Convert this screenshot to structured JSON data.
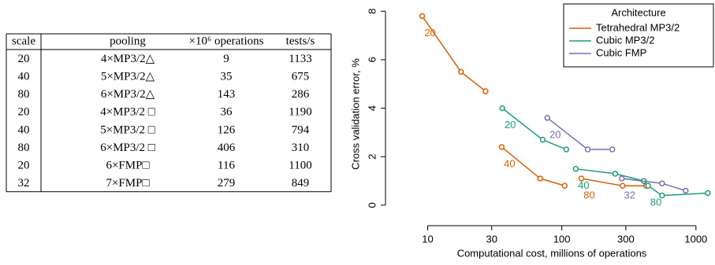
{
  "table": {
    "header": [
      "scale",
      "pooling",
      "×10⁶ operations",
      "tests/s"
    ],
    "rows": [
      [
        20,
        "4×MP3/2△",
        9,
        1133
      ],
      [
        40,
        "5×MP3/2△",
        35,
        675
      ],
      [
        80,
        "6×MP3/2△",
        143,
        286
      ],
      [
        20,
        "4×MP3/2 □",
        36,
        1190
      ],
      [
        40,
        "5×MP3/2 □",
        126,
        794
      ],
      [
        80,
        "6×MP3/2 □",
        406,
        310
      ],
      [
        20,
        "6×FMP□",
        116,
        1100
      ],
      [
        32,
        "7×FMP□",
        279,
        849
      ]
    ]
  },
  "chart_data": {
    "type": "line",
    "x_label": "Computational cost, millions of operations",
    "y_label": "Cross validation error, %",
    "xlim": [
      5.4,
      1350
    ],
    "ylim": [
      -0.78,
      8.3
    ],
    "xticks": [
      10,
      30,
      100,
      300,
      1000
    ],
    "yticks": [
      0,
      2,
      4,
      6,
      8
    ],
    "x_log": true,
    "legend_title": "Architecture",
    "legend_position": "topright",
    "series": [
      {
        "name": "Tetrahedral MP3/2",
        "color": "#d95f02",
        "x": [
          9.1,
          17.7,
          27,
          null,
          35.6,
          69,
          105,
          null,
          140,
          284,
          426
        ],
        "values": [
          7.8,
          5.5,
          4.7,
          null,
          2.4,
          1.1,
          0.8,
          null,
          1.1,
          0.8,
          0.8
        ],
        "group_labels": [
          "20",
          "40",
          "80"
        ]
      },
      {
        "name": "Cubic MP3/2",
        "color": "#1b9e77",
        "x": [
          36,
          72,
          108,
          null,
          127,
          250,
          408,
          null,
          440,
          559,
          1225
        ],
        "values": [
          4.0,
          2.7,
          2.3,
          null,
          1.5,
          1.3,
          1.0,
          null,
          0.8,
          0.4,
          0.5
        ],
        "group_labels": [
          "20",
          "40",
          "80"
        ]
      },
      {
        "name": "Cubic FMP",
        "color": "#7570b3",
        "x": [
          78,
          156,
          238,
          null,
          280,
          559,
          838
        ],
        "values": [
          3.6,
          2.3,
          2.3,
          null,
          1.1,
          0.9,
          0.6
        ],
        "group_labels": [
          "20",
          "32"
        ]
      }
    ]
  }
}
